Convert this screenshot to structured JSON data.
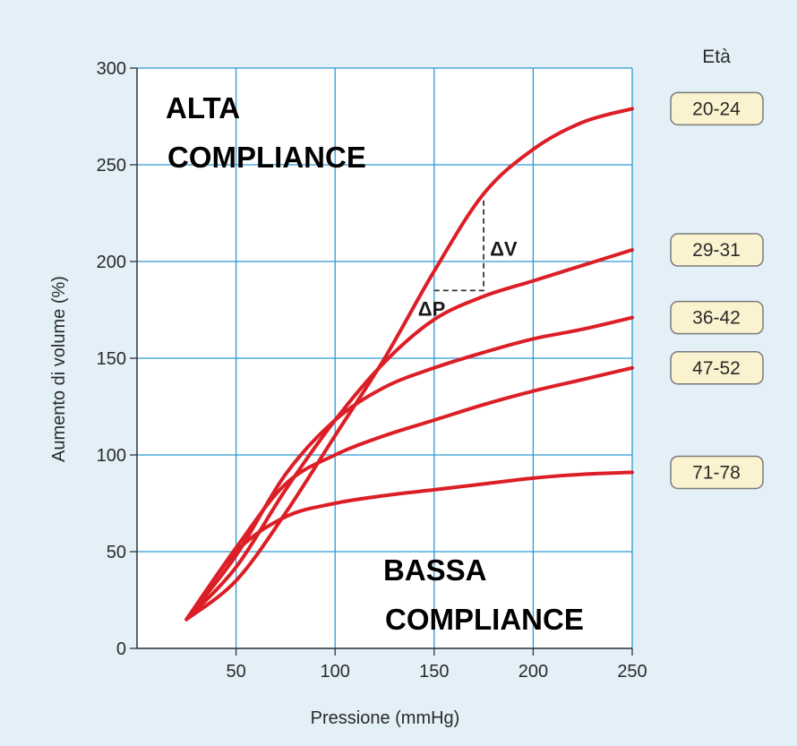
{
  "chart_data": {
    "type": "line",
    "title": "",
    "xlabel": "Pressione (mmHg)",
    "ylabel": "Aumento di volume (%)",
    "xlim": [
      0,
      250
    ],
    "ylim": [
      0,
      300
    ],
    "xticks": [
      50,
      100,
      150,
      200,
      250
    ],
    "yticks": [
      0,
      50,
      100,
      150,
      200,
      250,
      300
    ],
    "grid": true,
    "legend_title": "Età",
    "legend_position": "right",
    "line_color": "#dc1e26",
    "series": [
      {
        "name": "20-24",
        "x": [
          25,
          50,
          75,
          100,
          125,
          150,
          175,
          200,
          225,
          250
        ],
        "values": [
          15,
          35,
          70,
          110,
          150,
          195,
          235,
          258,
          272,
          279
        ]
      },
      {
        "name": "29-31",
        "x": [
          25,
          50,
          75,
          100,
          125,
          150,
          175,
          200,
          225,
          250
        ],
        "values": [
          15,
          42,
          82,
          118,
          148,
          170,
          182,
          190,
          198,
          206
        ]
      },
      {
        "name": "36-42",
        "x": [
          25,
          50,
          75,
          100,
          125,
          150,
          175,
          200,
          225,
          250
        ],
        "values": [
          15,
          48,
          90,
          118,
          135,
          145,
          153,
          160,
          165,
          171
        ]
      },
      {
        "name": "47-52",
        "x": [
          25,
          50,
          75,
          100,
          125,
          150,
          175,
          200,
          225,
          250
        ],
        "values": [
          15,
          52,
          85,
          100,
          110,
          118,
          126,
          133,
          139,
          145
        ]
      },
      {
        "name": "71-78",
        "x": [
          25,
          50,
          75,
          100,
          125,
          150,
          175,
          200,
          225,
          250
        ],
        "values": [
          15,
          50,
          68,
          75,
          79,
          82,
          85,
          88,
          90,
          91
        ]
      }
    ],
    "annotations": {
      "high": [
        "ALTA",
        "COMPLIANCE"
      ],
      "low": [
        "BASSA",
        "COMPLIANCE"
      ],
      "delta_v": "ΔV",
      "delta_p": "ΔP",
      "delta_points": {
        "p1": [
          150,
          185
        ],
        "corner": [
          175,
          185
        ],
        "p2": [
          175,
          232
        ]
      }
    }
  }
}
